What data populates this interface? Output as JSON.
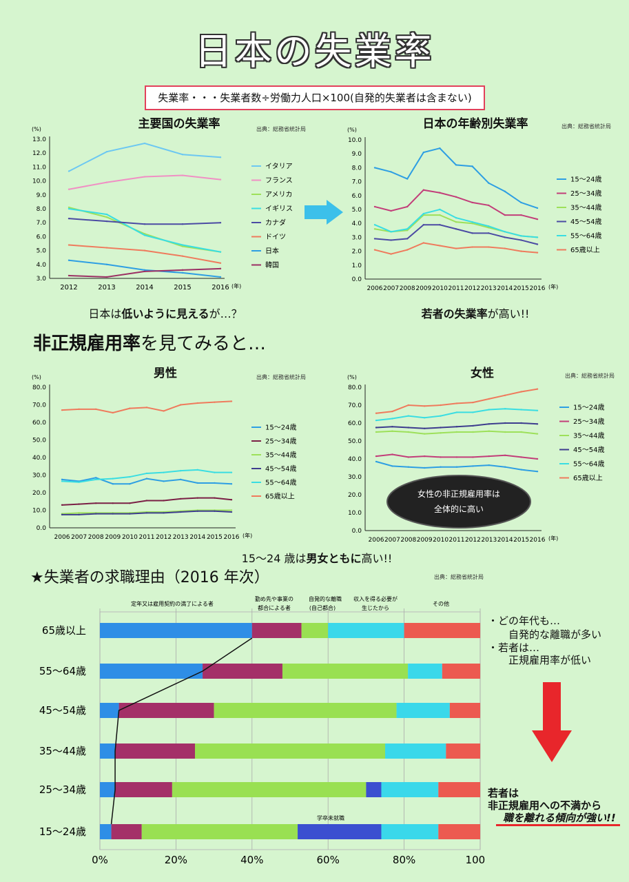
{
  "title": "日本の失業率",
  "definition": "失業率・・・失業者数÷労働力人口×100(自発的失業者は含まない)",
  "source": "出典：総務省統計局",
  "section_heading_bold": "非正規雇用率",
  "section_heading_rest": "を見てみると…",
  "reasons_heading": "★失業者の求職理由（2016 年次）",
  "caption_intl_pre": "日本は",
  "caption_intl_bold": "低いように見える",
  "caption_intl_post": "が…？",
  "caption_age_bold": "若者の失業率",
  "caption_age_post": "が高い!!",
  "caption_gender_pre": "15～24 歳は",
  "caption_gender_bold": "男女ともに",
  "caption_gender_post": "高い!!",
  "female_note_line1": "女性の非正規雇用率は",
  "female_note_line2": "全体的に高い",
  "right_note_1": "・どの年代も…",
  "right_note_2": "自発的な離職が多い",
  "right_note_3": "・若者は…",
  "right_note_4": "正規雇用率が低い",
  "conclusion_1": "若者は",
  "conclusion_2": "非正規雇用への不満から",
  "conclusion_3": "職を離れる傾向が強い!!",
  "colors": {
    "arrow_blue": "#3cc0ea",
    "arrow_red": "#e8262b"
  },
  "chart_data": [
    {
      "id": "intl",
      "type": "line",
      "title": "主要国の失業率",
      "unit_label": "(%)",
      "x_unit": "(年)",
      "x": [
        2012,
        2013,
        2014,
        2015,
        2016
      ],
      "ylim": [
        3.0,
        13.0
      ],
      "yticks": [
        "3.0",
        "4.0",
        "5.0",
        "6.0",
        "7.0",
        "8.0",
        "9.0",
        "10.0",
        "11.0",
        "12.0",
        "13.0"
      ],
      "series": [
        {
          "name": "イタリア",
          "color": "#6cc7f2",
          "values": [
            10.7,
            12.1,
            12.7,
            11.9,
            11.7
          ]
        },
        {
          "name": "フランス",
          "color": "#f08fc4",
          "values": [
            9.4,
            9.9,
            10.3,
            10.4,
            10.1
          ]
        },
        {
          "name": "アメリカ",
          "color": "#9de05a",
          "values": [
            8.1,
            7.4,
            6.2,
            5.3,
            4.9
          ]
        },
        {
          "name": "イギリス",
          "color": "#39dde2",
          "values": [
            8.0,
            7.6,
            6.1,
            5.4,
            4.9
          ]
        },
        {
          "name": "カナダ",
          "color": "#4b4aa3",
          "values": [
            7.3,
            7.1,
            6.9,
            6.9,
            7.0
          ]
        },
        {
          "name": "ドイツ",
          "color": "#ef7a5c",
          "values": [
            5.4,
            5.2,
            5.0,
            4.6,
            4.1
          ]
        },
        {
          "name": "日本",
          "color": "#2d9ee3",
          "values": [
            4.3,
            4.0,
            3.6,
            3.4,
            3.1
          ]
        },
        {
          "name": "韓国",
          "color": "#9b2f63",
          "values": [
            3.2,
            3.1,
            3.5,
            3.6,
            3.7
          ]
        }
      ]
    },
    {
      "id": "age",
      "type": "line",
      "title": "日本の年齢別失業率",
      "unit_label": "(%)",
      "x_unit": "(年)",
      "x": [
        2006,
        2007,
        2008,
        2009,
        2010,
        2011,
        2012,
        2013,
        2014,
        2015,
        2016
      ],
      "ylim": [
        0.0,
        10.0
      ],
      "yticks": [
        "0.0",
        "1.0",
        "2.0",
        "3.0",
        "4.0",
        "5.0",
        "6.0",
        "7.0",
        "8.0",
        "9.0",
        "10.0"
      ],
      "series": [
        {
          "name": "15～24歳",
          "color": "#2d9ee3",
          "values": [
            8.0,
            7.7,
            7.2,
            9.1,
            9.4,
            8.2,
            8.1,
            6.9,
            6.3,
            5.5,
            5.1
          ]
        },
        {
          "name": "25～34歳",
          "color": "#c23d79",
          "values": [
            5.2,
            4.9,
            5.2,
            6.4,
            6.2,
            5.9,
            5.5,
            5.3,
            4.6,
            4.6,
            4.3
          ]
        },
        {
          "name": "35～44歳",
          "color": "#9de05a",
          "values": [
            3.6,
            3.4,
            3.5,
            4.6,
            4.6,
            4.1,
            4.0,
            3.7,
            3.4,
            3.1,
            3.0
          ]
        },
        {
          "name": "45～54歳",
          "color": "#4b4aa3",
          "values": [
            2.9,
            2.8,
            2.9,
            3.9,
            3.9,
            3.6,
            3.3,
            3.3,
            3.0,
            2.8,
            2.5
          ]
        },
        {
          "name": "55～64歳",
          "color": "#39dde2",
          "values": [
            3.9,
            3.4,
            3.6,
            4.7,
            5.0,
            4.4,
            4.1,
            3.8,
            3.4,
            3.1,
            3.0
          ]
        },
        {
          "name": "65歳以上",
          "color": "#ef7a5c",
          "values": [
            2.1,
            1.8,
            2.1,
            2.6,
            2.4,
            2.2,
            2.3,
            2.3,
            2.2,
            2.0,
            1.9
          ]
        }
      ]
    },
    {
      "id": "male",
      "type": "line",
      "title": "男性",
      "unit_label": "(%)",
      "x_unit": "(年)",
      "x": [
        2006,
        2007,
        2008,
        2009,
        2010,
        2011,
        2012,
        2013,
        2014,
        2015,
        2016
      ],
      "ylim": [
        0.0,
        80.0
      ],
      "yticks": [
        "0.0",
        "10.0",
        "20.0",
        "30.0",
        "40.0",
        "50.0",
        "60.0",
        "70.0",
        "80.0"
      ],
      "series": [
        {
          "name": "15～24歳",
          "color": "#2d9ee3",
          "values": [
            27.5,
            26.5,
            28.5,
            25.0,
            25.0,
            28.0,
            26.5,
            27.5,
            25.5,
            25.5,
            25.0
          ]
        },
        {
          "name": "25～34歳",
          "color": "#7a1f45",
          "values": [
            13.0,
            13.5,
            14.0,
            14.0,
            14.0,
            15.5,
            15.5,
            16.5,
            17.0,
            17.0,
            16.0
          ]
        },
        {
          "name": "35～44歳",
          "color": "#9de05a",
          "values": [
            8.0,
            8.5,
            8.5,
            8.5,
            8.5,
            9.0,
            9.0,
            9.5,
            10.0,
            10.0,
            10.0
          ]
        },
        {
          "name": "45～54歳",
          "color": "#3d3c8e",
          "values": [
            7.5,
            7.5,
            8.0,
            8.0,
            8.0,
            8.5,
            8.5,
            9.0,
            9.5,
            9.5,
            9.0
          ]
        },
        {
          "name": "55～64歳",
          "color": "#39dde2",
          "values": [
            26.5,
            26.0,
            27.5,
            28.0,
            29.0,
            31.0,
            31.5,
            32.5,
            33.0,
            31.5,
            31.5
          ]
        },
        {
          "name": "65歳以上",
          "color": "#ef7a5c",
          "values": [
            67.0,
            67.5,
            67.5,
            65.5,
            68.0,
            68.5,
            66.5,
            70.0,
            71.0,
            71.5,
            72.0
          ]
        }
      ]
    },
    {
      "id": "female",
      "type": "line",
      "title": "女性",
      "unit_label": "(%)",
      "x_unit": "(年)",
      "x": [
        2006,
        2007,
        2008,
        2009,
        2010,
        2011,
        2012,
        2013,
        2014,
        2015,
        2016
      ],
      "ylim": [
        0.0,
        80.0
      ],
      "yticks": [
        "0.0",
        "10.0",
        "20.0",
        "30.0",
        "40.0",
        "50.0",
        "60.0",
        "70.0",
        "80.0"
      ],
      "series": [
        {
          "name": "15～24歳",
          "color": "#2d9ee3",
          "values": [
            38.5,
            36.0,
            35.5,
            35.0,
            35.5,
            35.5,
            36.0,
            36.5,
            35.5,
            34.0,
            33.0
          ]
        },
        {
          "name": "25～34歳",
          "color": "#c23d79",
          "values": [
            41.5,
            42.5,
            41.0,
            41.5,
            41.0,
            41.0,
            41.0,
            41.5,
            42.0,
            41.0,
            40.0
          ]
        },
        {
          "name": "35～44歳",
          "color": "#9de05a",
          "values": [
            55.0,
            55.5,
            55.0,
            54.0,
            54.5,
            55.0,
            55.0,
            55.5,
            55.0,
            55.0,
            54.0
          ]
        },
        {
          "name": "45～54歳",
          "color": "#3d3c8e",
          "values": [
            57.5,
            58.0,
            57.5,
            57.0,
            57.5,
            58.0,
            58.5,
            59.5,
            60.0,
            60.0,
            59.5
          ]
        },
        {
          "name": "55～64歳",
          "color": "#39dde2",
          "values": [
            61.5,
            62.5,
            64.0,
            63.0,
            64.0,
            66.0,
            66.0,
            67.5,
            68.0,
            67.5,
            67.0
          ]
        },
        {
          "name": "65歳以上",
          "color": "#ef7a5c",
          "values": [
            65.5,
            66.5,
            70.0,
            69.5,
            70.0,
            71.0,
            71.5,
            73.5,
            75.5,
            77.5,
            79.0
          ]
        }
      ]
    },
    {
      "id": "reasons",
      "type": "bar",
      "stacked": "100%",
      "orientation": "horizontal",
      "title": "★失業者の求職理由（2016 年次）",
      "xticks": [
        "0%",
        "20%",
        "40%",
        "60%",
        "80%",
        "100%"
      ],
      "categories": [
        "65歳以上",
        "55～64歳",
        "45～54歳",
        "35～44歳",
        "25～34歳",
        "15～24歳"
      ],
      "series": [
        {
          "name": "定年又は雇用契約の満了による者",
          "color": "#2e8ee6",
          "values": [
            40,
            27,
            5,
            4,
            4,
            3
          ]
        },
        {
          "name": "勤め先や事業の都合による者",
          "color": "#a43068",
          "values": [
            13,
            21,
            25,
            21,
            15,
            8
          ]
        },
        {
          "name": "自発的な離職（自己都合）",
          "color": "#99e052",
          "values": [
            7,
            33,
            48,
            50,
            51,
            41
          ]
        },
        {
          "name": "学卒未就職",
          "color": "#3b4fd0",
          "values": [
            0,
            0,
            0,
            0,
            4,
            22
          ]
        },
        {
          "name": "収入を得る必要が生じたから",
          "color": "#3ad8ea",
          "values": [
            20,
            9,
            14,
            16,
            15,
            15
          ]
        },
        {
          "name": "その他",
          "color": "#ec5a50",
          "values": [
            20,
            10,
            8,
            9,
            11,
            11
          ]
        }
      ],
      "header_labels": [
        "定年又は雇用契約の満了による者",
        "勤め先や事業の",
        "都合による者",
        "自発的な離職",
        "(自己都合)",
        "収入を得る必要が",
        "生じたから",
        "その他"
      ],
      "inline_label": "学卒未就職"
    }
  ]
}
